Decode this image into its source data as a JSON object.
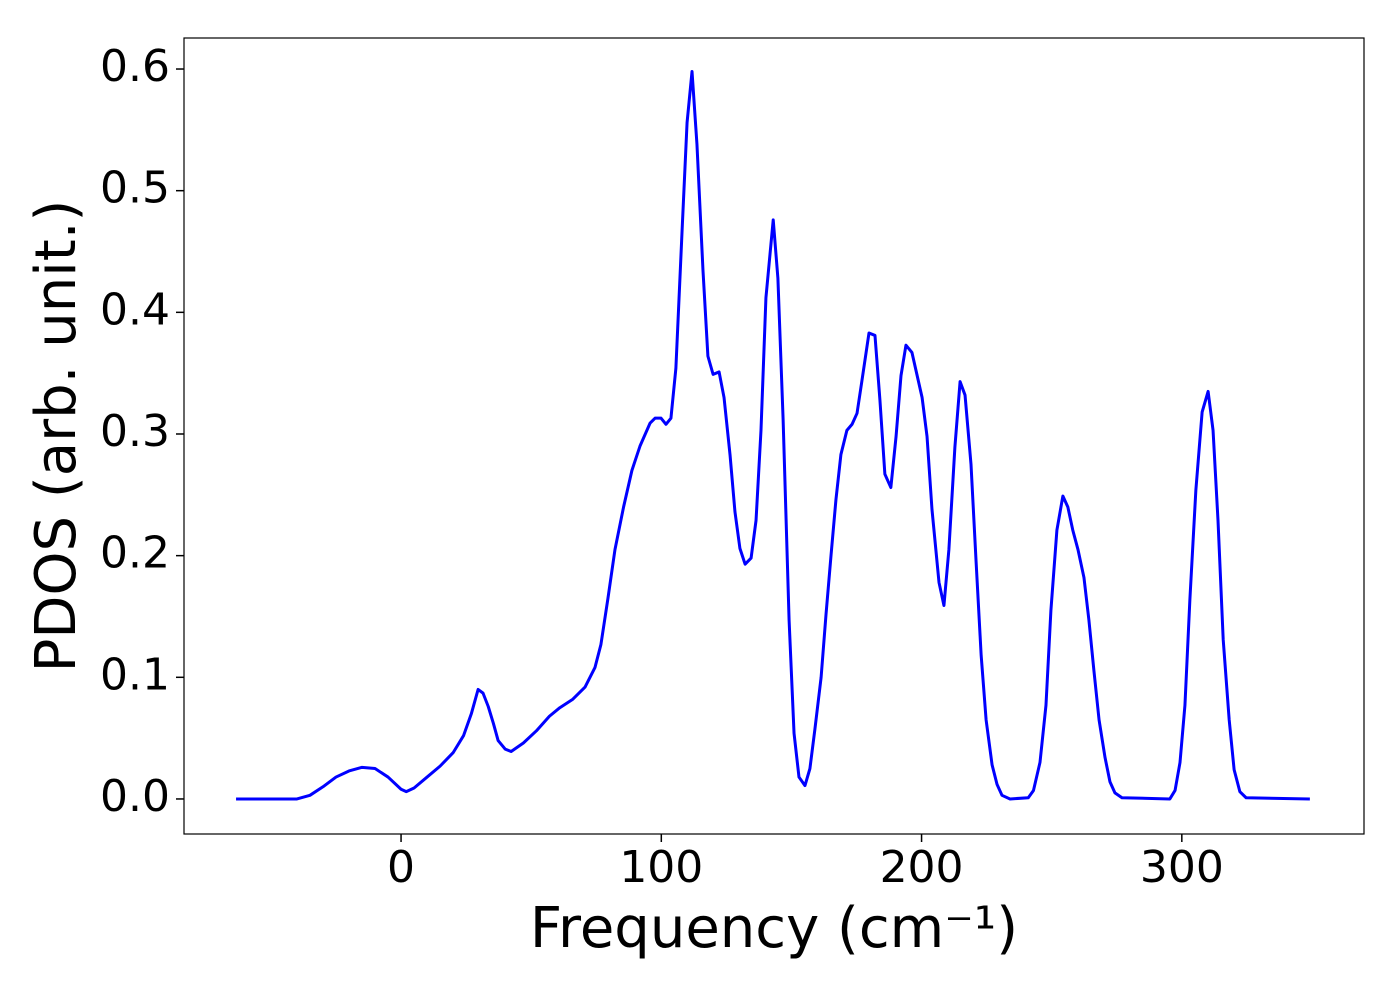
{
  "chart_data": {
    "type": "line",
    "xlabel": "Frequency (cm⁻¹)",
    "ylabel": "PDOS (arb. unit.)",
    "xlim": [
      -83.4,
      370
    ],
    "ylim": [
      -0.0288,
      0.6255
    ],
    "xticks": [
      0,
      100,
      200,
      300
    ],
    "yticks": [
      {
        "value": 0,
        "label": "0.0"
      },
      0.1,
      0.2,
      0.3,
      0.4,
      0.5,
      0.6
    ],
    "grid": false,
    "series": [
      {
        "color": "#0000ff",
        "x": [
          -63.4,
          -50,
          -40,
          -35,
          -30,
          -25,
          -20,
          -15,
          -10,
          -5,
          0,
          2,
          5,
          10,
          15,
          20,
          24,
          27,
          29.6,
          31.5,
          33.5,
          35.5,
          37.3,
          40,
          42.3,
          47,
          52,
          57,
          61,
          66,
          70.7,
          74.5,
          76.8,
          79.5,
          82.2,
          85.5,
          88.7,
          91.8,
          95.7,
          97.6,
          99.9,
          101.8,
          103.7,
          105.6,
          108,
          109.9,
          111.8,
          113.7,
          116,
          117.9,
          119.9,
          122.2,
          124.1,
          126.4,
          128.3,
          130.2,
          132.2,
          134.5,
          136.4,
          138.3,
          140.2,
          143,
          144.8,
          146.8,
          149.1,
          151,
          152.9,
          155.2,
          157.1,
          159,
          161.4,
          163.3,
          165.2,
          167.1,
          169,
          171.3,
          173.3,
          175.2,
          177.1,
          179.8,
          182.1,
          184,
          185.9,
          188.2,
          190.2,
          192.1,
          194,
          196.3,
          198.2,
          200.2,
          202.1,
          204,
          206.7,
          208.6,
          210.5,
          212.8,
          214.8,
          216.7,
          219,
          220.9,
          222.9,
          224.8,
          227.1,
          229,
          230.9,
          234,
          241,
          243,
          245.5,
          247.8,
          249.7,
          252,
          254.3,
          256.2,
          258.1,
          260.1,
          262.4,
          264.3,
          266.2,
          268.2,
          270.5,
          272.4,
          274.3,
          277,
          295.4,
          297.4,
          299.3,
          301.2,
          303.1,
          305.4,
          307.8,
          310.1,
          312,
          313.9,
          315.9,
          318.2,
          320.1,
          322.3,
          324.7,
          349.2
        ],
        "values": [
          0,
          0,
          0,
          0.003,
          0.01,
          0.018,
          0.023,
          0.026,
          0.025,
          0.018,
          0.008,
          0.006,
          0.009,
          0.018,
          0.027,
          0.038,
          0.052,
          0.07,
          0.09,
          0.087,
          0.076,
          0.062,
          0.048,
          0.041,
          0.039,
          0.046,
          0.056,
          0.068,
          0.075,
          0.082,
          0.092,
          0.108,
          0.127,
          0.165,
          0.205,
          0.24,
          0.27,
          0.29,
          0.309,
          0.313,
          0.313,
          0.308,
          0.313,
          0.354,
          0.468,
          0.556,
          0.598,
          0.538,
          0.435,
          0.364,
          0.349,
          0.351,
          0.33,
          0.283,
          0.236,
          0.206,
          0.193,
          0.198,
          0.229,
          0.303,
          0.412,
          0.476,
          0.428,
          0.312,
          0.147,
          0.054,
          0.018,
          0.011,
          0.025,
          0.057,
          0.1,
          0.152,
          0.2,
          0.246,
          0.283,
          0.303,
          0.308,
          0.317,
          0.344,
          0.383,
          0.381,
          0.328,
          0.267,
          0.256,
          0.298,
          0.348,
          0.373,
          0.367,
          0.349,
          0.33,
          0.298,
          0.238,
          0.178,
          0.159,
          0.205,
          0.289,
          0.343,
          0.332,
          0.275,
          0.197,
          0.118,
          0.065,
          0.028,
          0.012,
          0.003,
          0,
          0.001,
          0.007,
          0.03,
          0.077,
          0.155,
          0.221,
          0.249,
          0.24,
          0.221,
          0.205,
          0.182,
          0.147,
          0.106,
          0.065,
          0.034,
          0.014,
          0.005,
          0.001,
          0,
          0.007,
          0.03,
          0.077,
          0.164,
          0.254,
          0.318,
          0.335,
          0.303,
          0.229,
          0.131,
          0.065,
          0.024,
          0.006,
          0.001,
          0
        ]
      }
    ]
  }
}
